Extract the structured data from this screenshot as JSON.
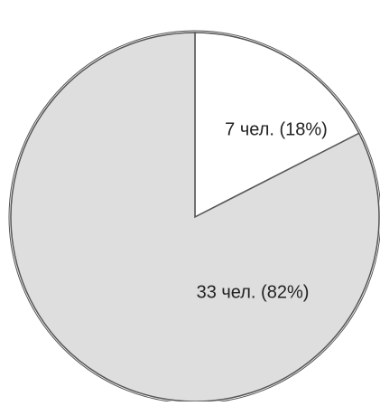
{
  "chart_data": {
    "type": "pie",
    "start_angle_deg": 0,
    "direction": "clockwise",
    "slices": [
      {
        "label": "7 чел. (18%)",
        "value": 7,
        "percent": 18,
        "color": "#ffffff"
      },
      {
        "label": "33 чел. (82%)",
        "value": 33,
        "percent": 82,
        "color": "#dedede"
      }
    ],
    "outline_color": "#555555"
  }
}
